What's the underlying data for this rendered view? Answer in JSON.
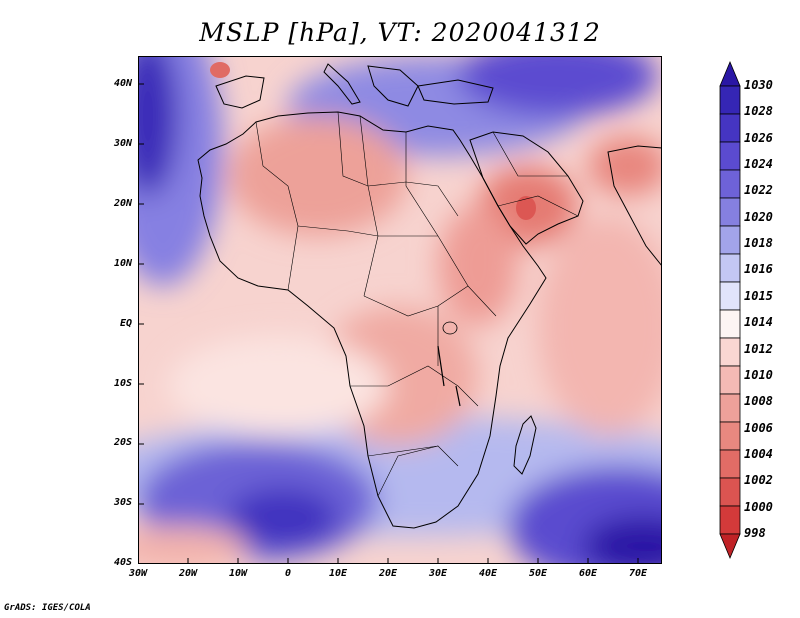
{
  "title": "MSLP [hPa], VT: 2020041312",
  "credit": "GrADS: IGES/COLA",
  "lat_labels": [
    "40N",
    "30N",
    "20N",
    "10N",
    "EQ",
    "10S",
    "20S",
    "30S",
    "40S"
  ],
  "lon_labels": [
    "30W",
    "20W",
    "10W",
    "0",
    "10E",
    "20E",
    "30E",
    "40E",
    "50E",
    "60E",
    "70E"
  ],
  "colorbar": {
    "levels": [
      "1030",
      "1028",
      "1026",
      "1024",
      "1022",
      "1020",
      "1018",
      "1016",
      "1015",
      "1014",
      "1012",
      "1010",
      "1008",
      "1006",
      "1004",
      "1002",
      "1000",
      "998"
    ],
    "colors": [
      "#2a17a5",
      "#3526b5",
      "#4535c2",
      "#5b4bd0",
      "#6e62d8",
      "#8580e0",
      "#a2a4ea",
      "#c3c7f3",
      "#e1e4fb",
      "#fdf5f3",
      "#f9d6d2",
      "#f5bab5",
      "#eea19a",
      "#e88880",
      "#e26c66",
      "#db5451",
      "#d33a3a",
      "#c02226"
    ]
  },
  "colors": {
    "ocean_mid": "#f8d6d2",
    "land_border": "#000000"
  }
}
